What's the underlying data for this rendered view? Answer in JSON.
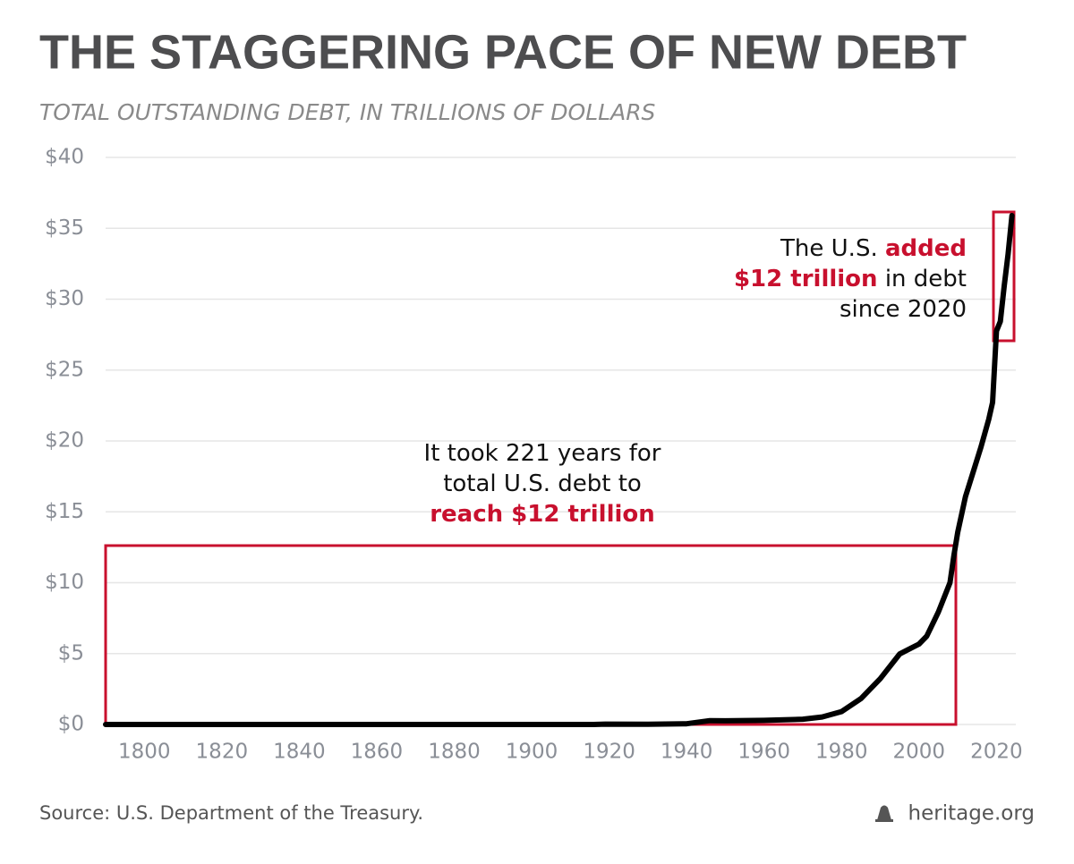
{
  "chart_data": {
    "type": "line",
    "title": "THE STAGGERING PACE OF NEW DEBT",
    "subtitle": "TOTAL OUTSTANDING DEBT, IN TRILLIONS OF DOLLARS",
    "x": [
      1790,
      1800,
      1820,
      1840,
      1860,
      1866,
      1900,
      1916,
      1919,
      1930,
      1940,
      1946,
      1950,
      1960,
      1970,
      1975,
      1980,
      1985,
      1990,
      1995,
      2000,
      2002,
      2005,
      2008,
      2009,
      2010,
      2012,
      2014,
      2016,
      2018,
      2019,
      2020,
      2021,
      2022,
      2023,
      2024
    ],
    "values": [
      7e-05,
      8e-05,
      9e-05,
      4e-06,
      6e-05,
      0.0027,
      0.0012,
      0.0012,
      0.027,
      0.016,
      0.051,
      0.271,
      0.257,
      0.29,
      0.37,
      0.53,
      0.91,
      1.82,
      3.23,
      4.97,
      5.67,
      6.23,
      7.93,
      10.0,
      11.9,
      13.56,
      16.07,
      17.82,
      19.57,
      21.52,
      22.72,
      27.75,
      28.43,
      30.93,
      33.17,
      35.9
    ],
    "color": "#000000",
    "xlim": [
      1790,
      2025
    ],
    "ylim": [
      0,
      40
    ],
    "xticks": [
      1800,
      1820,
      1840,
      1860,
      1880,
      1900,
      1920,
      1940,
      1960,
      1980,
      2000,
      2020
    ],
    "yticks": [
      {
        "value": 0,
        "label": "$0"
      },
      {
        "value": 5,
        "label": "$5"
      },
      {
        "value": 10,
        "label": "$10"
      },
      {
        "value": 15,
        "label": "$15"
      },
      {
        "value": 20,
        "label": "$20"
      },
      {
        "value": 25,
        "label": "$25"
      },
      {
        "value": 30,
        "label": "$30"
      },
      {
        "value": 35,
        "label": "$35"
      },
      {
        "value": 40,
        "label": "$40"
      }
    ],
    "grid": true,
    "annotations": [
      {
        "lines": [
          [
            "It took 221 years for"
          ],
          [
            "total U.S. debt to"
          ],
          [
            {
              "text": "reach $12 trillion",
              "color": "#c8102e"
            }
          ]
        ]
      },
      {
        "lines": [
          [
            "The U.S.",
            {
              "text": "added",
              "color": "#c8102e"
            }
          ],
          [
            {
              "text": "$12 trillion",
              "color": "#c8102e"
            },
            "in debt"
          ],
          [
            "since 2020"
          ]
        ]
      }
    ],
    "source": "Source: U.S. Department of the Treasury.",
    "brand": "heritage.org"
  }
}
